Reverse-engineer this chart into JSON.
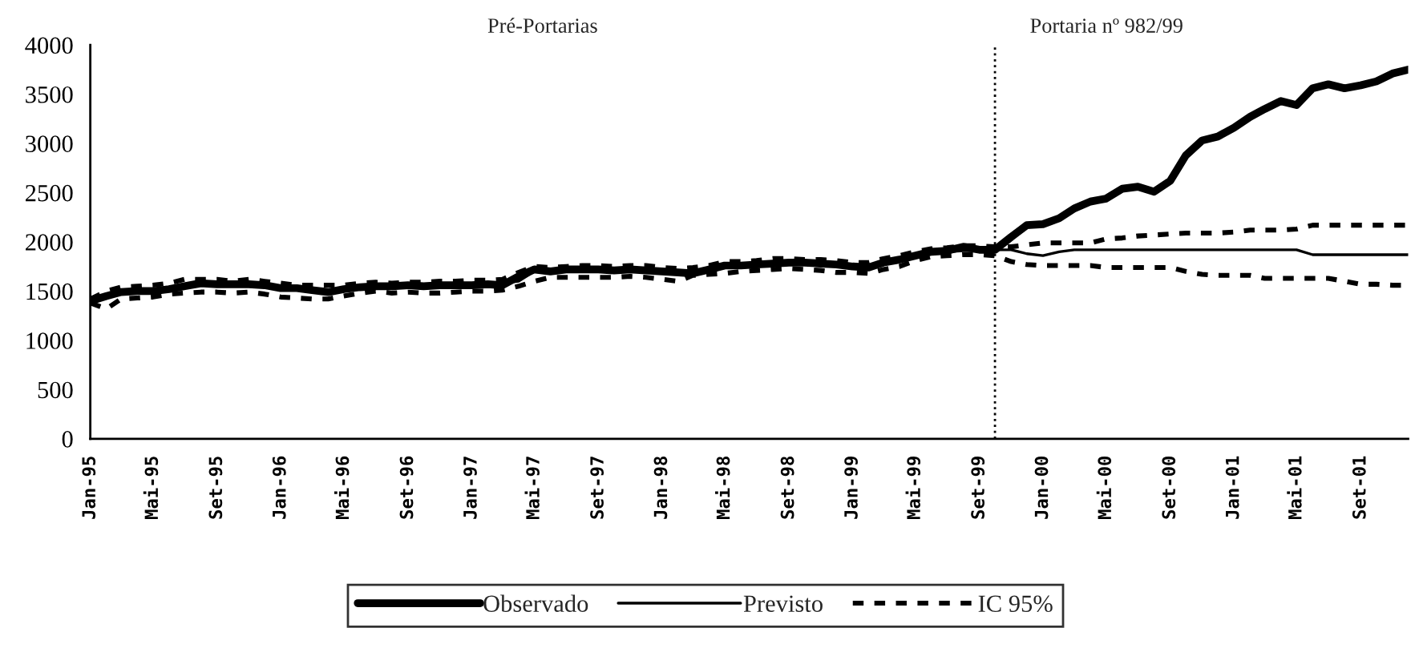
{
  "chart_data": {
    "type": "line",
    "annotations": [
      "Pré-Portarias",
      "Portaria nº 982/99"
    ],
    "x": [
      "1995-01",
      "1995-02",
      "1995-03",
      "1995-04",
      "1995-05",
      "1995-06",
      "1995-07",
      "1995-08",
      "1995-09",
      "1995-10",
      "1995-11",
      "1995-12",
      "1996-01",
      "1996-02",
      "1996-03",
      "1996-04",
      "1996-05",
      "1996-06",
      "1996-07",
      "1996-08",
      "1996-09",
      "1996-10",
      "1996-11",
      "1996-12",
      "1997-01",
      "1997-02",
      "1997-03",
      "1997-04",
      "1997-05",
      "1997-06",
      "1997-07",
      "1997-08",
      "1997-09",
      "1997-10",
      "1997-11",
      "1997-12",
      "1998-01",
      "1998-02",
      "1998-03",
      "1998-04",
      "1998-05",
      "1998-06",
      "1998-07",
      "1998-08",
      "1998-09",
      "1998-10",
      "1998-11",
      "1998-12",
      "1999-01",
      "1999-02",
      "1999-03",
      "1999-04",
      "1999-05",
      "1999-06",
      "1999-07",
      "1999-08",
      "1999-09",
      "1999-10",
      "1999-11",
      "1999-12",
      "2000-01",
      "2000-02",
      "2000-03",
      "2000-04",
      "2000-05",
      "2000-06",
      "2000-07",
      "2000-08",
      "2000-09",
      "2000-10",
      "2000-11",
      "2000-12",
      "2001-01",
      "2001-02",
      "2001-03",
      "2001-04",
      "2001-05",
      "2001-06",
      "2001-07",
      "2001-08",
      "2001-09",
      "2001-10",
      "2001-11",
      "2001-12"
    ],
    "series": [
      {
        "name": "Observado",
        "color": "#000000",
        "line_style": "solid",
        "values": [
          1400,
          1450,
          1490,
          1500,
          1500,
          1520,
          1550,
          1580,
          1570,
          1570,
          1570,
          1560,
          1530,
          1530,
          1510,
          1490,
          1520,
          1540,
          1550,
          1550,
          1560,
          1550,
          1560,
          1560,
          1560,
          1570,
          1560,
          1650,
          1720,
          1700,
          1720,
          1720,
          1720,
          1710,
          1720,
          1710,
          1700,
          1690,
          1680,
          1720,
          1760,
          1760,
          1770,
          1780,
          1790,
          1790,
          1780,
          1770,
          1750,
          1740,
          1790,
          1820,
          1860,
          1900,
          1910,
          1950,
          1920,
          1920,
          2050,
          2170,
          2180,
          2240,
          2340,
          2410,
          2440,
          2540,
          2560,
          2510,
          2620,
          2880,
          3030,
          3070,
          3160,
          3270,
          3350,
          3430,
          3390,
          3560,
          3600,
          3560,
          3590,
          3630,
          3710,
          3750
        ]
      },
      {
        "name": "Previsto",
        "color": "#000000",
        "line_style": "solid",
        "values": [
          1400,
          1460,
          1490,
          1500,
          1510,
          1530,
          1550,
          1570,
          1570,
          1570,
          1570,
          1550,
          1530,
          1520,
          1510,
          1500,
          1520,
          1540,
          1550,
          1550,
          1550,
          1560,
          1560,
          1560,
          1570,
          1570,
          1580,
          1600,
          1700,
          1700,
          1710,
          1720,
          1720,
          1710,
          1720,
          1700,
          1690,
          1690,
          1700,
          1730,
          1760,
          1770,
          1780,
          1790,
          1790,
          1790,
          1780,
          1770,
          1760,
          1760,
          1800,
          1830,
          1860,
          1890,
          1900,
          1910,
          1910,
          1920,
          1920,
          1880,
          1860,
          1900,
          1920,
          1920,
          1920,
          1920,
          1920,
          1920,
          1920,
          1920,
          1920,
          1920,
          1920,
          1920,
          1920,
          1920,
          1920,
          1870,
          1870,
          1870,
          1870,
          1870,
          1870,
          1870
        ]
      },
      {
        "name": "IC 95%",
        "color": "#000000",
        "line_style": "dashed",
        "values": [
          1420,
          1500,
          1540,
          1550,
          1560,
          1580,
          1620,
          1620,
          1620,
          1600,
          1620,
          1600,
          1580,
          1560,
          1560,
          1560,
          1560,
          1580,
          1590,
          1580,
          1590,
          1590,
          1600,
          1600,
          1610,
          1610,
          1620,
          1690,
          1750,
          1740,
          1750,
          1760,
          1760,
          1750,
          1760,
          1760,
          1740,
          1730,
          1740,
          1760,
          1800,
          1800,
          1810,
          1830,
          1830,
          1820,
          1820,
          1810,
          1790,
          1790,
          1830,
          1860,
          1900,
          1930,
          1940,
          1960,
          1960,
          1950,
          1950,
          1970,
          1990,
          1990,
          1990,
          1990,
          2030,
          2040,
          2060,
          2070,
          2080,
          2090,
          2090,
          2090,
          2100,
          2120,
          2120,
          2120,
          2130,
          2170,
          2170,
          2170,
          2170,
          2170,
          2170,
          2170
        ]
      },
      {
        "color": "#000000",
        "line_style": "dashed",
        "values": [
          1380,
          1320,
          1420,
          1430,
          1440,
          1470,
          1480,
          1490,
          1490,
          1480,
          1490,
          1470,
          1440,
          1430,
          1420,
          1420,
          1450,
          1480,
          1500,
          1480,
          1490,
          1480,
          1480,
          1490,
          1500,
          1500,
          1510,
          1550,
          1600,
          1640,
          1640,
          1640,
          1640,
          1640,
          1650,
          1640,
          1620,
          1600,
          1660,
          1670,
          1680,
          1700,
          1710,
          1720,
          1730,
          1720,
          1710,
          1690,
          1690,
          1680,
          1720,
          1750,
          1810,
          1850,
          1860,
          1870,
          1870,
          1860,
          1800,
          1770,
          1760,
          1760,
          1760,
          1760,
          1740,
          1740,
          1740,
          1740,
          1740,
          1700,
          1670,
          1660,
          1660,
          1660,
          1630,
          1630,
          1630,
          1630,
          1630,
          1600,
          1570,
          1570,
          1560,
          1560
        ]
      }
    ],
    "xlim": [
      "1995-01",
      "2001-12"
    ],
    "xticks": [
      {
        "value": "1995-01",
        "label": "Jan-95"
      },
      {
        "value": "1995-05",
        "label": "Mai-95"
      },
      {
        "value": "1995-09",
        "label": "Set-95"
      },
      {
        "value": "1996-01",
        "label": "Jan-96"
      },
      {
        "value": "1996-05",
        "label": "Mai-96"
      },
      {
        "value": "1996-09",
        "label": "Set-96"
      },
      {
        "value": "1997-01",
        "label": "Jan-97"
      },
      {
        "value": "1997-05",
        "label": "Mai-97"
      },
      {
        "value": "1997-09",
        "label": "Set-97"
      },
      {
        "value": "1998-01",
        "label": "Jan-98"
      },
      {
        "value": "1998-05",
        "label": "Mai-98"
      },
      {
        "value": "1998-09",
        "label": "Set-98"
      },
      {
        "value": "1999-01",
        "label": "Jan-99"
      },
      {
        "value": "1999-05",
        "label": "Mai-99"
      },
      {
        "value": "1999-09",
        "label": "Set-99"
      },
      {
        "value": "2000-01",
        "label": "Jan-00"
      },
      {
        "value": "2000-05",
        "label": "Mai-00"
      },
      {
        "value": "2000-09",
        "label": "Set-00"
      },
      {
        "value": "2001-01",
        "label": "Jan-01"
      },
      {
        "value": "2001-05",
        "label": "Mai-01"
      },
      {
        "value": "2001-09",
        "label": "Set-01"
      }
    ],
    "ylim": [
      0,
      4000
    ],
    "yticks": [
      0,
      500,
      1000,
      1500,
      2000,
      2500,
      3000,
      3500,
      4000
    ],
    "ref_lines": [
      {
        "axis": "x",
        "value": "1999-10",
        "color": "#000000",
        "line_style": "dotted"
      }
    ],
    "grid": false,
    "legend": "bottom",
    "marker": "none"
  }
}
